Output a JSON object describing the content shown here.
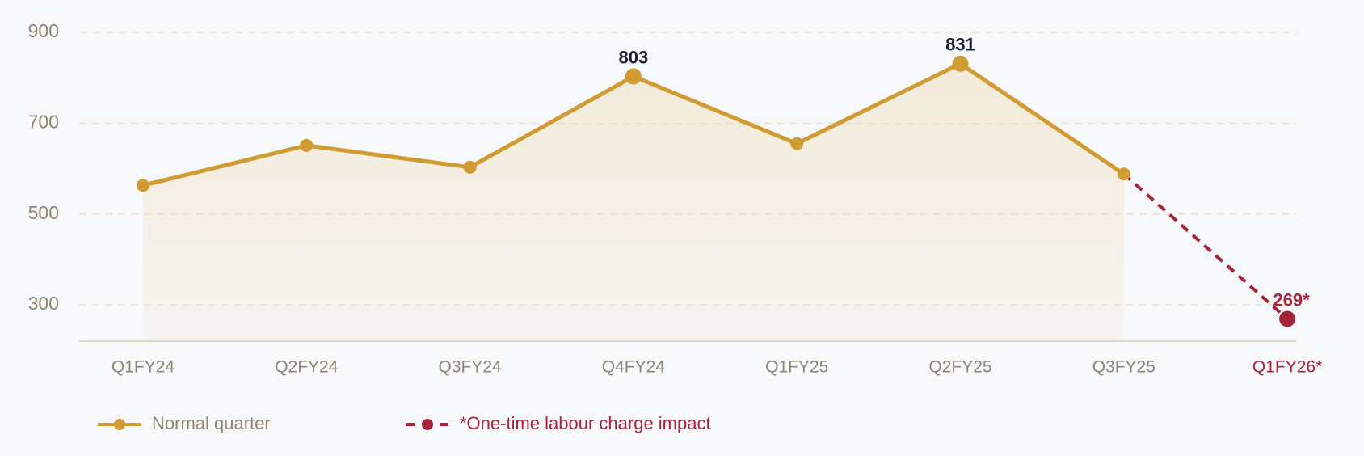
{
  "chart_data": {
    "type": "line",
    "categories": [
      "Q1FY24",
      "Q2FY24",
      "Q3FY24",
      "Q4FY24",
      "Q1FY25",
      "Q2FY25",
      "Q3FY25",
      "Q1FY26*"
    ],
    "series": [
      {
        "name": "Normal quarter",
        "color": "#d09b33",
        "dashed": false,
        "values": [
          563,
          651,
          603,
          803,
          655,
          831,
          588,
          null
        ],
        "value_labels": [
          null,
          null,
          null,
          "803",
          null,
          "831",
          null,
          null
        ]
      },
      {
        "name": "*One-time labour charge impact",
        "color": "#a6233a",
        "dashed": true,
        "values": [
          null,
          null,
          null,
          null,
          null,
          null,
          588,
          269
        ],
        "value_labels": [
          null,
          null,
          null,
          null,
          null,
          null,
          null,
          "269*"
        ]
      }
    ],
    "ylim": [
      220,
      900
    ],
    "yticks": [
      300,
      500,
      700,
      900
    ],
    "grid": true,
    "area": true
  }
}
